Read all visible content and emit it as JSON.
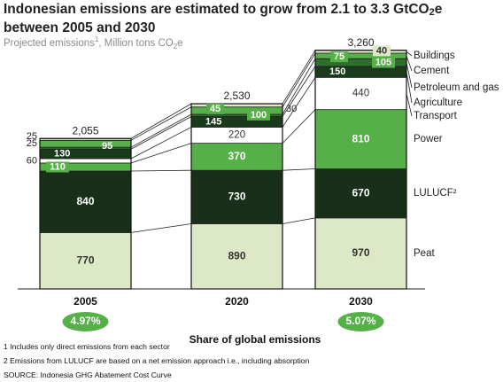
{
  "header": {
    "title_line1": "Indonesian emissions are estimated to grow from 2.1 to 3.3 GtCO",
    "title_sub": "2",
    "title_suffix": "e",
    "title_line2": "between 2005 and 2030",
    "subtitle_main": "Projected emissions",
    "subtitle_sup": "1",
    "subtitle_unit": ", Million tons CO",
    "subtitle_sub": "2",
    "subtitle_end": "e"
  },
  "chart_data": {
    "type": "bar",
    "stacked": true,
    "categories": [
      "2005",
      "2020",
      "2030"
    ],
    "totals": [
      "2,055",
      "2,530",
      "3,260"
    ],
    "series": [
      {
        "name": "Peat",
        "values": [
          770,
          890,
          970
        ],
        "color": "#dce8c6",
        "text_color": "#333333"
      },
      {
        "name": "LULUCF²",
        "values": [
          840,
          730,
          670
        ],
        "color": "#18301a",
        "text_color": "#ffffff"
      },
      {
        "name": "Power",
        "values": [
          110,
          370,
          810
        ],
        "color": "#55b047",
        "text_color": "#ffffff"
      },
      {
        "name": "Transport",
        "values": [
          60,
          220,
          440
        ],
        "color": "#ffffff",
        "text_color": "#333333"
      },
      {
        "name": "Agriculture",
        "values": [
          130,
          145,
          150
        ],
        "color": "#1a3a1c",
        "text_color": "#ffffff"
      },
      {
        "name": "Petroleum and gas",
        "values": [
          25,
          30,
          105
        ],
        "color": "#2f6e2e",
        "text_color": "#ffffff"
      },
      {
        "name": "Cement",
        "values": [
          95,
          100,
          75
        ],
        "color": "#55b047",
        "text_color": "#ffffff"
      },
      {
        "name": "Buildings",
        "values": [
          25,
          45,
          40
        ],
        "color": "#dce8c6",
        "text_color": "#333333"
      }
    ],
    "segment_labels": [
      [
        "770",
        "840",
        "110",
        "60",
        "130",
        "25",
        "95",
        "25"
      ],
      [
        "890",
        "730",
        "370",
        "220",
        "145",
        "30",
        "100",
        "45"
      ],
      [
        "970",
        "670",
        "810",
        "440",
        "150",
        "105",
        "75",
        "40"
      ]
    ],
    "axis_title": "Share of global emissions",
    "shares": [
      "4.97%",
      "",
      "5.07%"
    ]
  },
  "footnotes": {
    "note1": "1 Includes only direct emissions from each sector",
    "note2": "2 Emissions from LULUCF are based on a net emission approach i.e., including absorption",
    "source": "SOURCE: Indonesia GHG Abatement Cost Curve"
  },
  "colors": {
    "share_badge": "#55b047",
    "connector": "#222222"
  }
}
